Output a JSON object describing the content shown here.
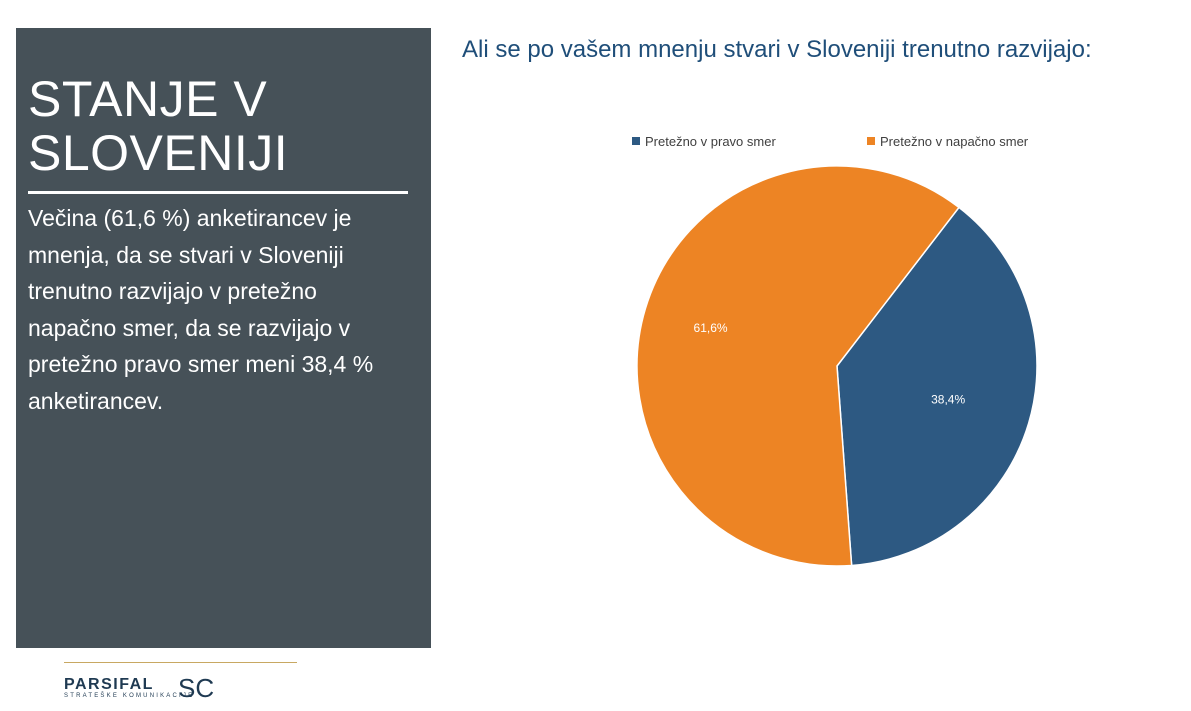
{
  "side_panel": {
    "title_line1": "STANJE V",
    "title_line2": "SLOVENIJI",
    "body": "Večina (61,6 %) anketirancev je mnenja, da se stvari v Sloveniji trenutno razvijajo v pretežno napačno smer, da se razvijajo v pretežno pravo smer meni 38,4 % anketirancev."
  },
  "chart_data": {
    "type": "pie",
    "title": "Ali se po vašem mnenju stvari v Sloveniji trenutno razvijajo:",
    "legend_position": "top",
    "slices": [
      {
        "label": "Pretežno v pravo smer",
        "value": 38.4,
        "data_label": "38,4%",
        "color": "#2d5982"
      },
      {
        "label": "Pretežno v napačno smer",
        "value": 61.6,
        "data_label": "61,6%",
        "color": "#ed8424"
      }
    ]
  },
  "logo": {
    "name": "PARSIFAL",
    "suffix": "SC",
    "tagline": "STRATEŠKE KOMUNIKACIJE"
  }
}
